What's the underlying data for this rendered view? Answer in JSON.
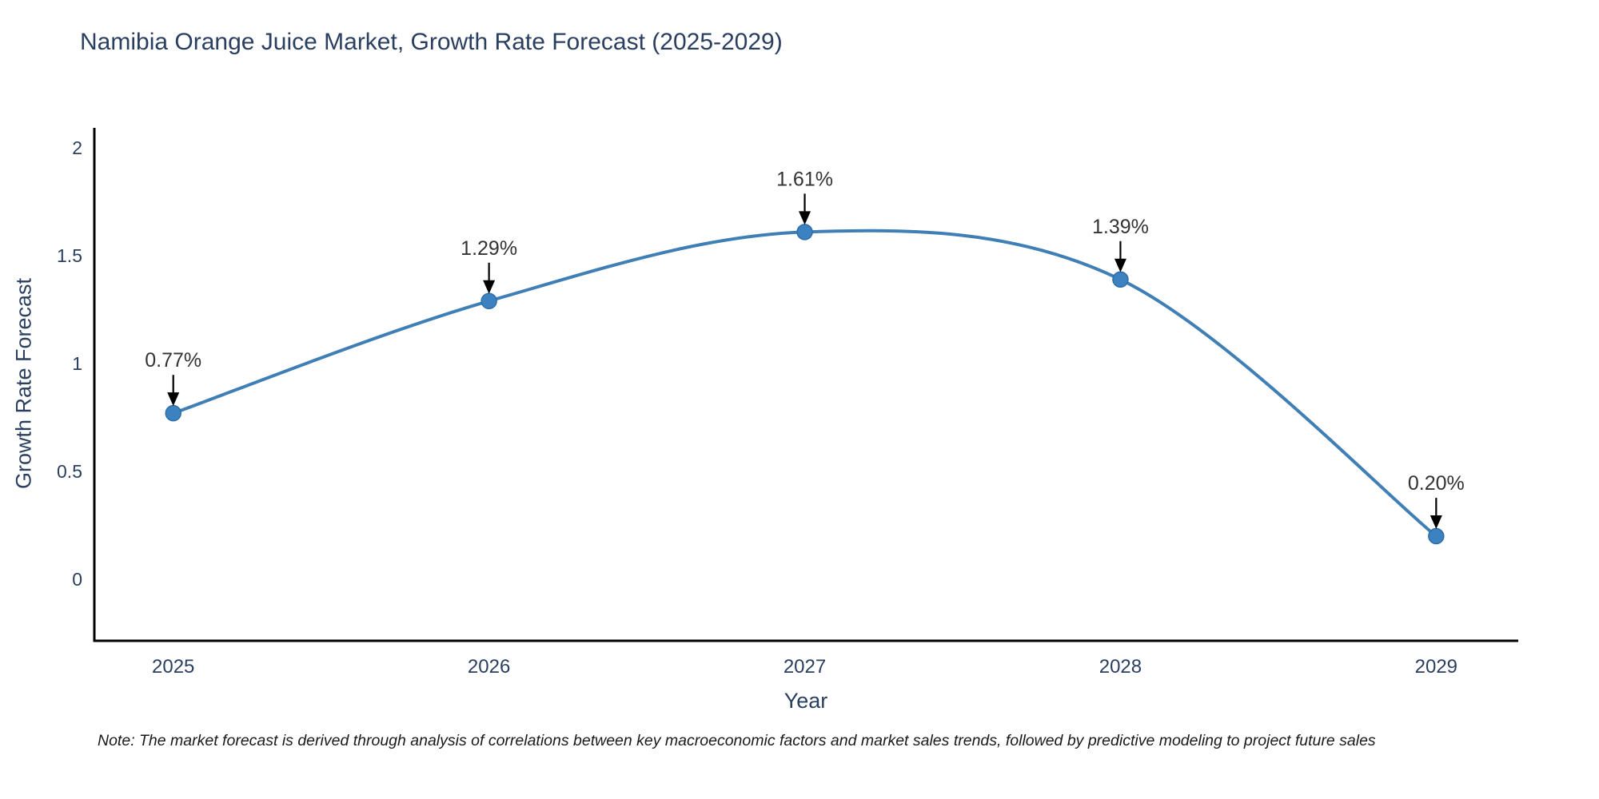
{
  "title": "Namibia Orange Juice Market, Growth Rate Forecast (2025-2029)",
  "note": "Note: The market forecast is derived through analysis of correlations between key macroeconomic factors and market sales trends, followed by predictive modeling to project future sales",
  "chart_data": {
    "type": "line",
    "title": "Namibia Orange Juice Market, Growth Rate Forecast (2025-2029)",
    "xlabel": "Year",
    "ylabel": "Growth Rate Forecast",
    "categories": [
      2025,
      2026,
      2027,
      2028,
      2029
    ],
    "values": [
      0.77,
      1.29,
      1.61,
      1.39,
      0.2
    ],
    "point_labels": [
      "0.77%",
      "1.29%",
      "1.61%",
      "1.39%",
      "0.20%"
    ],
    "x_tick_labels": [
      "2025",
      "2026",
      "2027",
      "2028",
      "2029"
    ],
    "y_ticks": [
      0,
      0.5,
      1,
      1.5,
      2
    ],
    "y_tick_labels": [
      "0",
      "0.5",
      "1",
      "1.5",
      "2"
    ],
    "x_range": [
      2024.75,
      2029.26
    ],
    "y_range": [
      -0.285,
      2.093
    ],
    "line_shape": "spline",
    "grid": false,
    "legend": "none",
    "colors": {
      "line": "#3f7fb5",
      "marker": "#3d82c0",
      "marker_edge": "#2f6da8",
      "axis": "#000000",
      "tick_text": "#2a3f5f",
      "annotation_text": "#333333",
      "arrow": "#000000",
      "background": "#ffffff"
    }
  }
}
